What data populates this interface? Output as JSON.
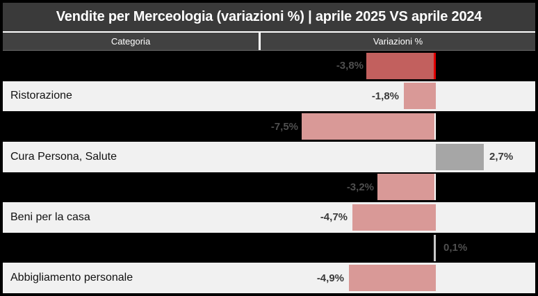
{
  "header": {
    "title": "Vendite per Merceologia (variazioni %) | aprile 2025 VS aprile 2024"
  },
  "columns": {
    "category": "Categoria",
    "value": "Variazioni %"
  },
  "colors": {
    "frame": "#000000",
    "title_bg": "#3a3a3a",
    "subheader_bg": "#414141",
    "dark_row_bg": "#000000",
    "light_row_bg": "#f1f1f1",
    "bar_negative": "#d99997",
    "bar_negative_highlight": "#c2605e",
    "bar_positive": "#a6a6a6",
    "bar_zero": "#c9c9c9",
    "axis_edge_red": "#e20000",
    "axis_edge_white": "#ffffff"
  },
  "chart_data": {
    "type": "bar",
    "orientation": "horizontal",
    "title": "Vendite per Merceologia (variazioni %) | aprile 2025 VS aprile 2024",
    "xlabel": "Variazioni %",
    "ylabel": "Categoria",
    "axis_range_percent": [
      -9.7,
      5.6
    ],
    "grid": false,
    "legend": false,
    "rows": [
      {
        "category": "",
        "label": "-3,8%",
        "value": -3.8,
        "bar": "highlight",
        "edge": "red",
        "row_style": "dark"
      },
      {
        "category": "Ristorazione",
        "label": "-1,8%",
        "value": -1.8,
        "bar": "negative",
        "edge": null,
        "row_style": "light"
      },
      {
        "category": "",
        "label": "-7,5%",
        "value": -7.5,
        "bar": "negative",
        "edge": "white",
        "row_style": "dark"
      },
      {
        "category": "Cura Persona, Salute",
        "label": "2,7%",
        "value": 2.7,
        "bar": "positive",
        "edge": null,
        "row_style": "light"
      },
      {
        "category": "",
        "label": "-3,2%",
        "value": -3.2,
        "bar": "negative",
        "edge": "white",
        "row_style": "dark"
      },
      {
        "category": "Beni per la casa",
        "label": "-4,7%",
        "value": -4.7,
        "bar": "negative",
        "edge": null,
        "row_style": "light"
      },
      {
        "category": "",
        "label": "0,1%",
        "value": 0.1,
        "bar": "zero",
        "edge": null,
        "row_style": "dark"
      },
      {
        "category": "Abbigliamento personale",
        "label": "-4,9%",
        "value": -4.9,
        "bar": "negative",
        "edge": null,
        "row_style": "light"
      }
    ]
  }
}
